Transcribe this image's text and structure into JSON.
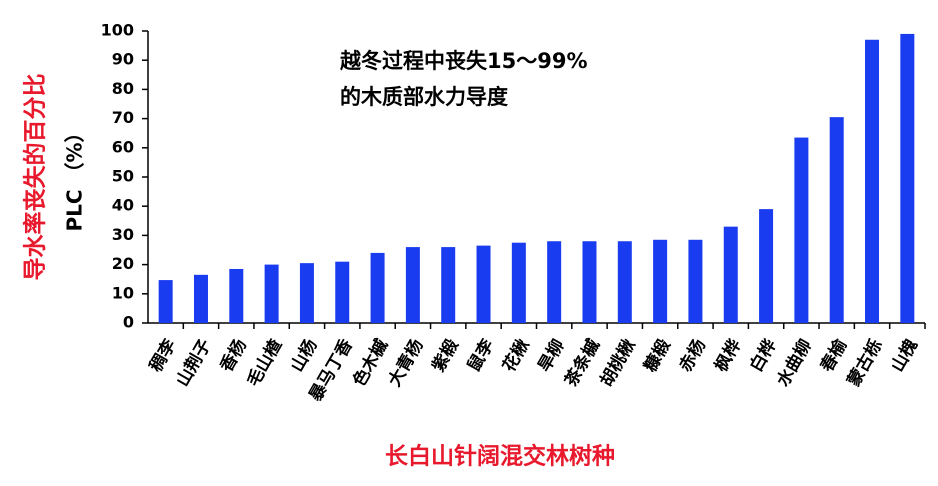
{
  "chart_data": {
    "type": "bar",
    "annotation": [
      "越冬过程中丧失15～99%",
      "的木质部水力导度"
    ],
    "y_label": [
      "导水率丧失的百分比",
      "PLC （%）"
    ],
    "x_label": "长白山针阔混交林树种",
    "categories": [
      "稠李",
      "山荆子",
      "香杨",
      "毛山楂",
      "山杨",
      "暴马丁香",
      "色木槭",
      "大青杨",
      "紫椴",
      "鼠李",
      "花楸",
      "旱柳",
      "茶条槭",
      "胡桃楸",
      "糠椴",
      "赤杨",
      "枫桦",
      "白桦",
      "水曲柳",
      "春榆",
      "蒙古栎",
      "山槐"
    ],
    "values": [
      14.7,
      16.5,
      18.5,
      20,
      20.5,
      21,
      24,
      26,
      26,
      26.5,
      27.5,
      28,
      28,
      28,
      28.5,
      28.5,
      33,
      39,
      63.5,
      70.5,
      97,
      99
    ],
    "color": "#1a3cf0",
    "ylim": [
      0,
      100
    ],
    "yticks": [
      0,
      10,
      20,
      30,
      40,
      50,
      60,
      70,
      80,
      90,
      100
    ]
  }
}
